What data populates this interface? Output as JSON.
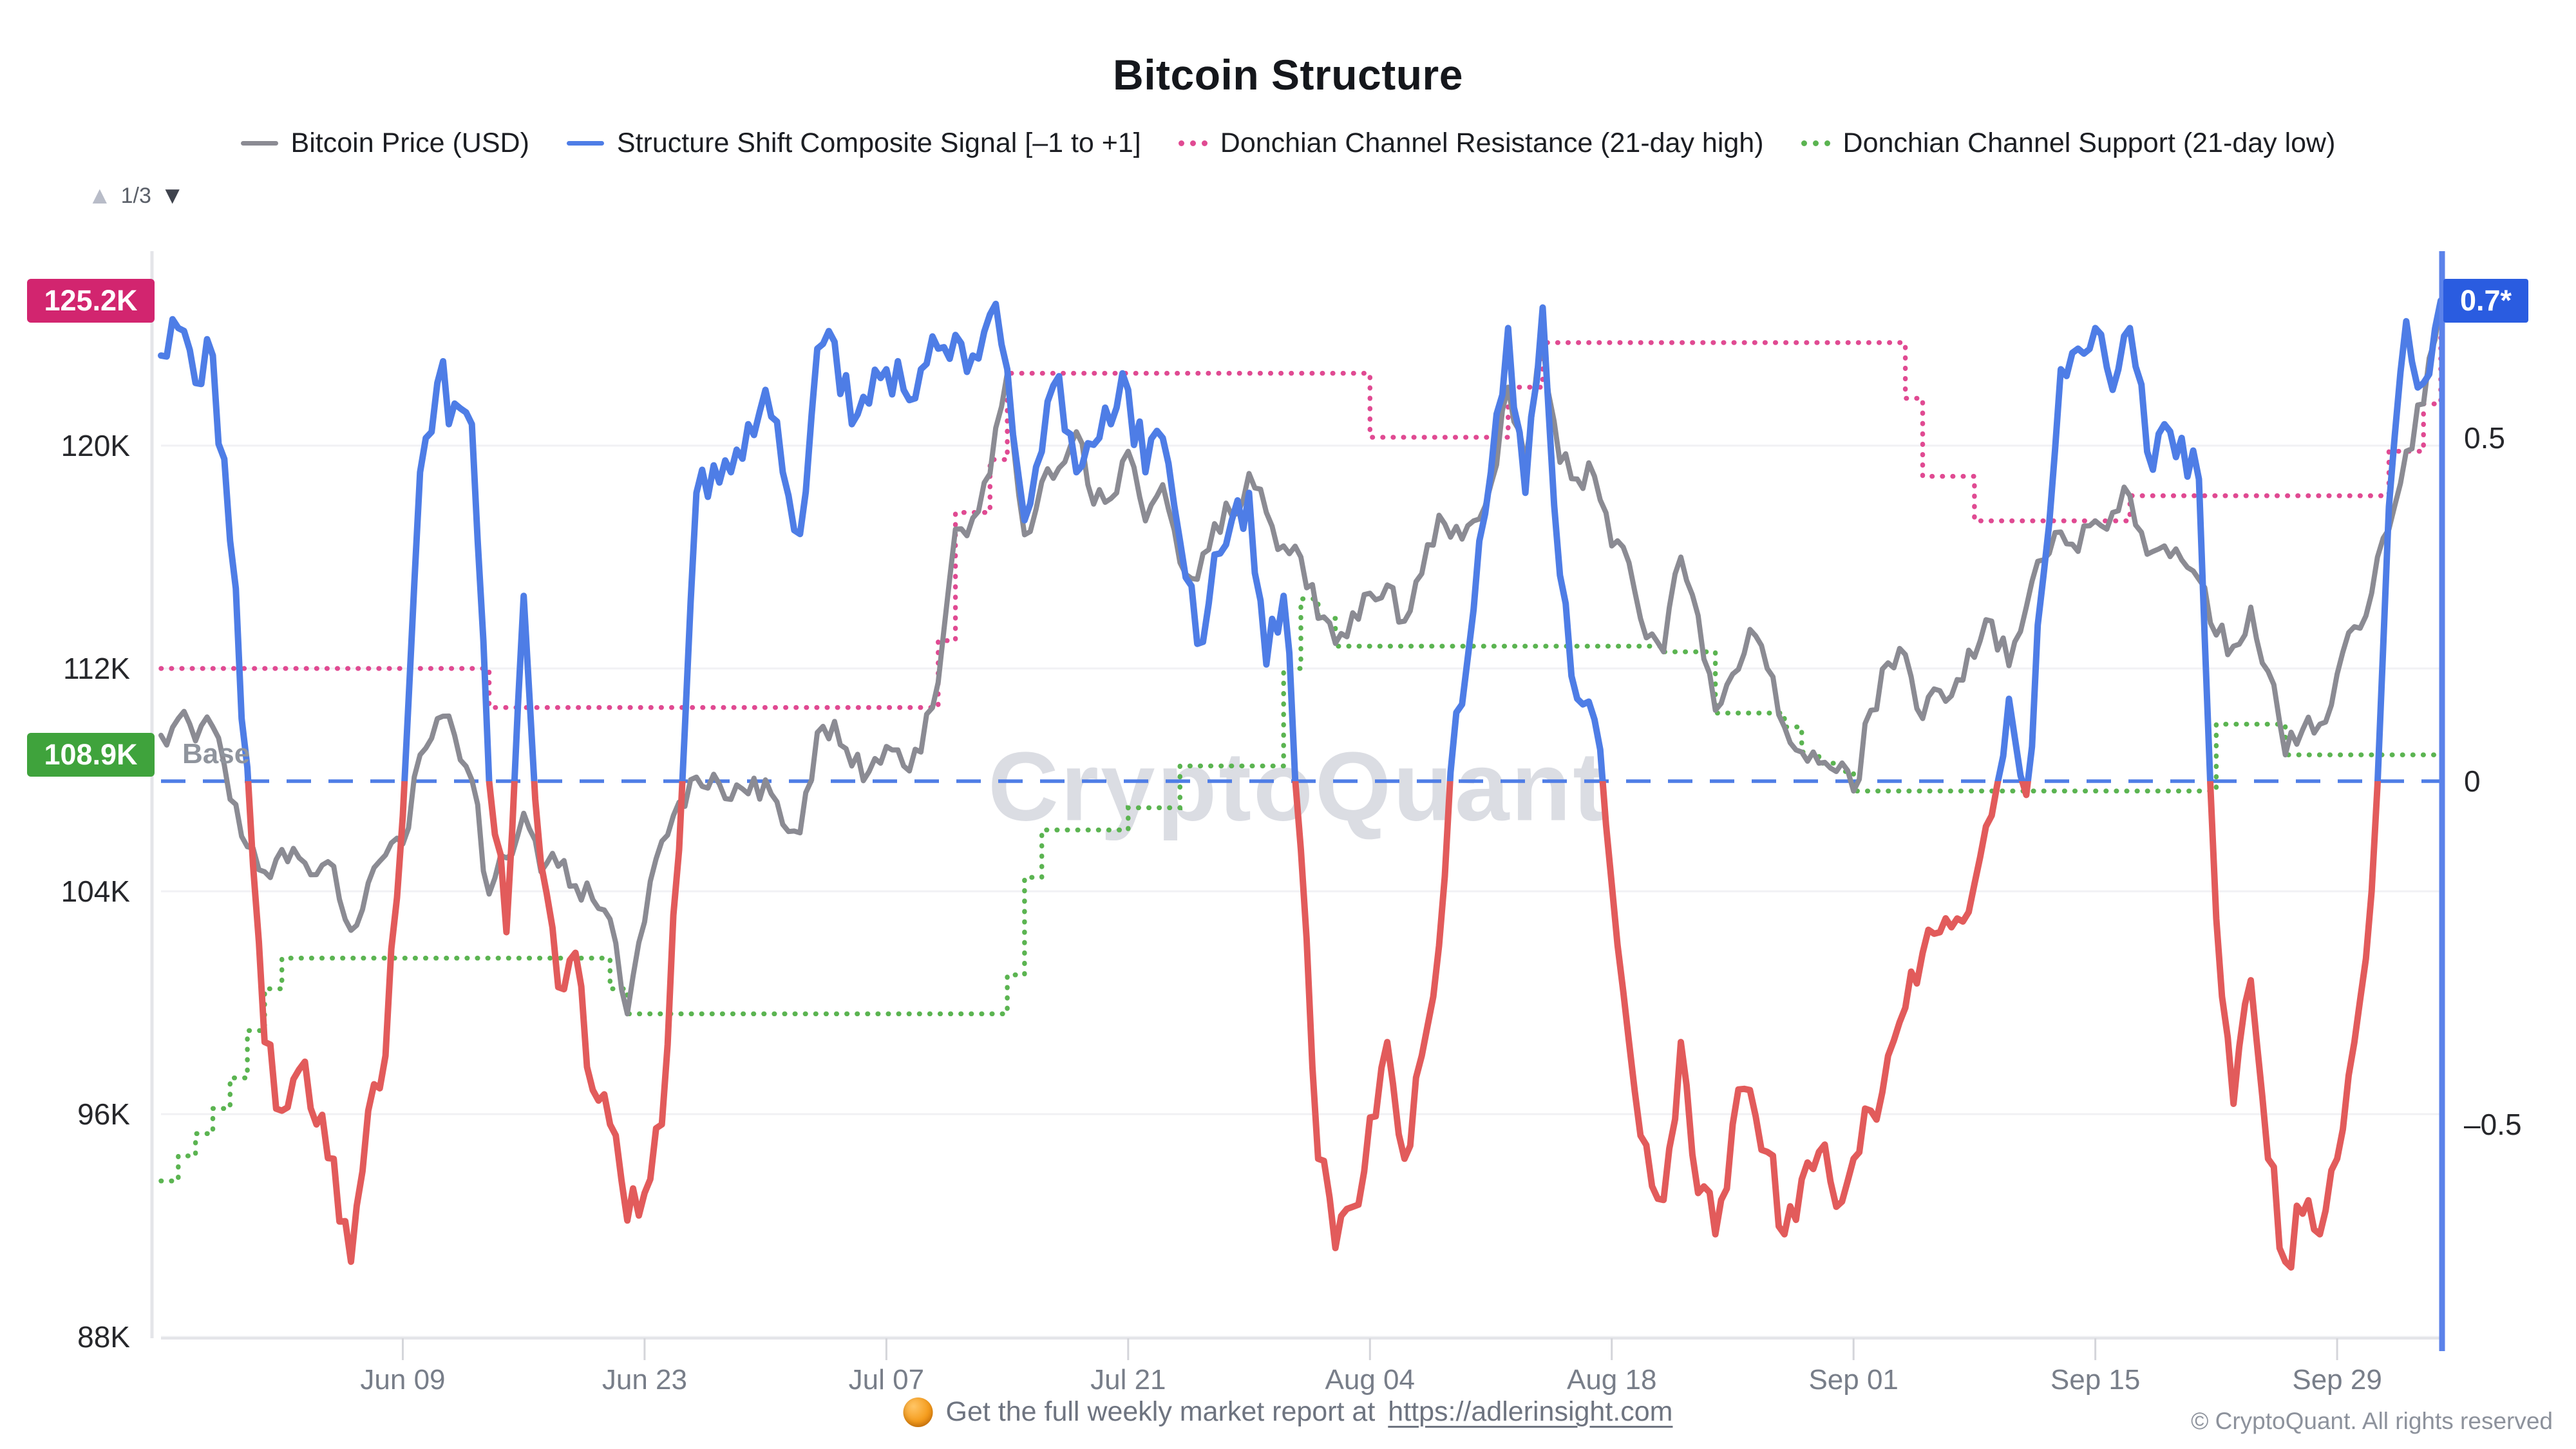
{
  "title": "Bitcoin Structure",
  "pagination": {
    "label": "1/3",
    "up_icon": "▲",
    "down_icon": "▼"
  },
  "legend": {
    "items": [
      {
        "label": "Bitcoin Price (USD)",
        "marker": "line",
        "color": "#8b8b93"
      },
      {
        "label": "Structure Shift Composite Signal [–1 to +1]",
        "marker": "line",
        "color": "#4e7de6"
      },
      {
        "label": "Donchian Channel Resistance (21-day high)",
        "marker": "dots",
        "color": "#e04a92"
      },
      {
        "label": "Donchian Channel Support (21-day low)",
        "marker": "dots",
        "color": "#5bb451"
      }
    ]
  },
  "watermark": "CryptoQuant",
  "base_label": "Base",
  "badges": {
    "resistance_label": "125.2K",
    "support_label": "108.9K",
    "signal_label": "0.7*"
  },
  "colors": {
    "price_line": "#8b8b93",
    "signal_positive": "#4e7de6",
    "signal_negative": "#e25b5b",
    "resistance_dots": "#e04a92",
    "support_dots": "#5bb451",
    "resistance_badge": "#d2256f",
    "support_badge": "#3fa33c",
    "signal_badge": "#2a5ce0",
    "base_dash": "#4e7de6",
    "right_axis": "#5b82ea",
    "grid": "#f1f1f4",
    "axis_light": "#e4e5e9",
    "tick": "#d4d5da"
  },
  "footer": {
    "report_text": "Get the full weekly market report at",
    "report_url": "https://adlerinsight.com",
    "copyright": "© CryptoQuant. All rights reserved"
  },
  "chart_data": {
    "type": "line",
    "title": "Bitcoin Structure",
    "x_axis": {
      "unit": "days since 2025-05-26 (daily estimates read from chart)",
      "range": [
        0,
        132
      ],
      "ticks": [
        {
          "day": 14,
          "label": "Jun 09"
        },
        {
          "day": 28,
          "label": "Jun 23"
        },
        {
          "day": 42,
          "label": "Jul 07"
        },
        {
          "day": 56,
          "label": "Jul 21"
        },
        {
          "day": 70,
          "label": "Aug 04"
        },
        {
          "day": 84,
          "label": "Aug 18"
        },
        {
          "day": 98,
          "label": "Sep 01"
        },
        {
          "day": 112,
          "label": "Sep 15"
        },
        {
          "day": 126,
          "label": "Sep 29"
        }
      ]
    },
    "y_left": {
      "name": "Bitcoin Price (USD)",
      "unit": "thousand USD",
      "ticks": [
        {
          "value": 120,
          "label": "120K"
        },
        {
          "value": 112,
          "label": "112K"
        },
        {
          "value": 104,
          "label": "104K"
        },
        {
          "value": 96,
          "label": "96K"
        },
        {
          "value": 88,
          "label": "88K"
        }
      ],
      "range": [
        87,
        126.5
      ]
    },
    "y_right": {
      "name": "Structure Shift Composite Signal",
      "range": [
        -1,
        1
      ],
      "ticks": [
        {
          "value": 0.5,
          "label": "0.5"
        },
        {
          "value": 0,
          "label": "0"
        },
        {
          "value": -0.5,
          "label": "-0.5"
        }
      ]
    },
    "base_line": {
      "value": 0,
      "label": "Base"
    },
    "latest": {
      "resistance_k": 125.2,
      "support_k": 108.9,
      "signal": 0.7
    },
    "grid": true,
    "legend_position": "top",
    "series": [
      {
        "name": "Bitcoin Price (USD)",
        "axis": "left",
        "style": "solid",
        "values_k": [
          109.6,
          110.2,
          109.4,
          109.9,
          107.3,
          105.6,
          104.7,
          105.5,
          105.2,
          104.6,
          104.9,
          102.6,
          104.3,
          105.3,
          105.7,
          108.9,
          110.2,
          109.6,
          108.0,
          103.9,
          105.2,
          106.8,
          104.7,
          104.9,
          104.2,
          103.7,
          103.0,
          99.6,
          102.9,
          105.8,
          107.2,
          108.1,
          108.2,
          107.3,
          107.5,
          108.0,
          106.4,
          106.1,
          109.7,
          110.1,
          108.5,
          108.3,
          109.2,
          108.5,
          109.0,
          111.5,
          117.0,
          117.4,
          119.0,
          122.6,
          116.8,
          118.7,
          119.2,
          120.5,
          117.9,
          118.1,
          119.8,
          117.3,
          118.6,
          115.8,
          115.2,
          117.2,
          117.5,
          119.0,
          117.6,
          116.4,
          116.0,
          113.8,
          112.9,
          114.0,
          114.7,
          115.0,
          113.7,
          115.4,
          117.5,
          117.1,
          117.3,
          118.6,
          122.1,
          119.4,
          123.7,
          119.4,
          118.8,
          118.9,
          116.4,
          115.8,
          113.1,
          112.6,
          116.0,
          113.9,
          110.5,
          111.8,
          113.4,
          112.0,
          109.9,
          109.0,
          108.6,
          108.3,
          107.6,
          110.5,
          112.2,
          112.5,
          110.2,
          111.2,
          111.6,
          112.4,
          113.7,
          112.1,
          114.2,
          115.9,
          116.9,
          116.2,
          117.3,
          117.6,
          118.2,
          116.1,
          116.4,
          115.9,
          115.2,
          113.2,
          112.8,
          114.2,
          111.9,
          108.9,
          109.8,
          110.0,
          111.8,
          113.5,
          114.7,
          117.0,
          119.8,
          121.5,
          125.2
        ]
      },
      {
        "name": "Structure Shift Composite Signal [–1 to +1]",
        "axis": "right",
        "style": "solid",
        "note": "rendered blue above 0, red below 0",
        "values": [
          0.62,
          0.66,
          0.58,
          0.62,
          0.35,
          0.02,
          -0.38,
          -0.48,
          -0.42,
          -0.5,
          -0.55,
          -0.7,
          -0.48,
          -0.4,
          -0.05,
          0.45,
          0.58,
          0.55,
          0.52,
          0.0,
          -0.22,
          0.27,
          -0.12,
          -0.3,
          -0.25,
          -0.45,
          -0.5,
          -0.64,
          -0.6,
          -0.5,
          -0.1,
          0.42,
          0.46,
          0.45,
          0.52,
          0.57,
          0.45,
          0.36,
          0.63,
          0.64,
          0.52,
          0.55,
          0.6,
          0.57,
          0.6,
          0.63,
          0.65,
          0.62,
          0.68,
          0.6,
          0.38,
          0.48,
          0.59,
          0.45,
          0.49,
          0.52,
          0.57,
          0.45,
          0.5,
          0.35,
          0.2,
          0.33,
          0.38,
          0.42,
          0.17,
          0.27,
          -0.1,
          -0.55,
          -0.68,
          -0.62,
          -0.49,
          -0.38,
          -0.55,
          -0.4,
          -0.24,
          0.1,
          0.25,
          0.45,
          0.66,
          0.42,
          0.69,
          0.3,
          0.12,
          0.09,
          -0.15,
          -0.38,
          -0.53,
          -0.61,
          -0.38,
          -0.6,
          -0.66,
          -0.5,
          -0.45,
          -0.54,
          -0.66,
          -0.58,
          -0.54,
          -0.62,
          -0.55,
          -0.48,
          -0.4,
          -0.33,
          -0.25,
          -0.22,
          -0.2,
          -0.15,
          -0.05,
          0.12,
          -0.02,
          0.3,
          0.6,
          0.63,
          0.66,
          0.57,
          0.66,
          0.48,
          0.52,
          0.5,
          0.44,
          -0.2,
          -0.47,
          -0.29,
          -0.55,
          -0.7,
          -0.63,
          -0.66,
          -0.55,
          -0.38,
          -0.16,
          0.4,
          0.67,
          0.58,
          0.7
        ]
      },
      {
        "name": "Donchian Channel Resistance (21-day high)",
        "axis": "left",
        "style": "dotted-step",
        "steps_k": [
          [
            0,
            18,
            112.0
          ],
          [
            19,
            44,
            110.6
          ],
          [
            45,
            45,
            113.0
          ],
          [
            46,
            47,
            117.6
          ],
          [
            48,
            48,
            119.5
          ],
          [
            49,
            69,
            122.6
          ],
          [
            70,
            77,
            120.3
          ],
          [
            78,
            79,
            122.1
          ],
          [
            80,
            100,
            123.7
          ],
          [
            101,
            101,
            121.7
          ],
          [
            102,
            104,
            118.9
          ],
          [
            105,
            113,
            117.3
          ],
          [
            114,
            128,
            118.2
          ],
          [
            129,
            130,
            119.8
          ],
          [
            131,
            131,
            121.5
          ],
          [
            132,
            132,
            125.2
          ]
        ]
      },
      {
        "name": "Donchian Channel Support (21-day low)",
        "axis": "left",
        "style": "dotted-step",
        "steps_k": [
          [
            0,
            0,
            93.6
          ],
          [
            1,
            1,
            94.5
          ],
          [
            2,
            2,
            95.3
          ],
          [
            3,
            3,
            96.2
          ],
          [
            4,
            4,
            97.3
          ],
          [
            5,
            5,
            99.0
          ],
          [
            6,
            6,
            100.5
          ],
          [
            7,
            25,
            101.6
          ],
          [
            26,
            26,
            100.5
          ],
          [
            27,
            48,
            99.6
          ],
          [
            49,
            49,
            101.0
          ],
          [
            50,
            50,
            104.5
          ],
          [
            51,
            55,
            106.2
          ],
          [
            56,
            58,
            107.0
          ],
          [
            59,
            64,
            108.5
          ],
          [
            65,
            65,
            112.0
          ],
          [
            66,
            66,
            114.5
          ],
          [
            67,
            67,
            113.8
          ],
          [
            68,
            86,
            112.8
          ],
          [
            87,
            89,
            112.6
          ],
          [
            90,
            93,
            110.4
          ],
          [
            94,
            94,
            109.9
          ],
          [
            95,
            95,
            109.0
          ],
          [
            96,
            96,
            108.6
          ],
          [
            97,
            97,
            108.3
          ],
          [
            98,
            118,
            107.6
          ],
          [
            119,
            122,
            110.0
          ],
          [
            123,
            132,
            108.9
          ]
        ]
      }
    ]
  }
}
